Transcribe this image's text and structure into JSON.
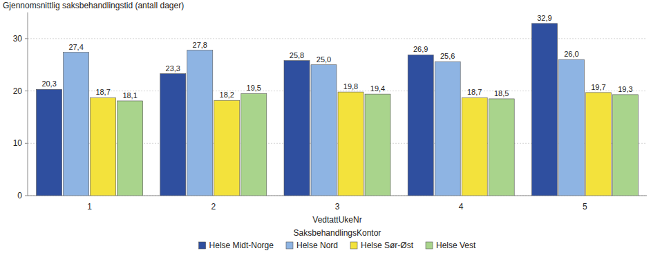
{
  "chart_data": {
    "type": "bar",
    "y_label": "Gjennomsnittlig saksbehandlingstid (antall dager)",
    "x_label": "VedtattUkeNr",
    "legend_title": "SaksbehandlingsKontor",
    "categories": [
      "1",
      "2",
      "3",
      "4",
      "5"
    ],
    "series": [
      {
        "name": "Helse Midt-Norge",
        "color": "#2f4f9f",
        "values": [
          20.3,
          23.3,
          25.8,
          26.9,
          32.9
        ],
        "value_labels": [
          "20,3",
          "23,3",
          "25,8",
          "26,9",
          "32,9"
        ]
      },
      {
        "name": "Helse Nord",
        "color": "#8eb4e3",
        "values": [
          27.4,
          27.8,
          25.0,
          25.6,
          26.0
        ],
        "value_labels": [
          "27,4",
          "27,8",
          "25,0",
          "25,6",
          "26,0"
        ]
      },
      {
        "name": "Helse Sør-Øst",
        "color": "#f3e23c",
        "values": [
          18.7,
          18.2,
          19.8,
          18.7,
          19.7
        ],
        "value_labels": [
          "18,7",
          "18,2",
          "19,8",
          "18,7",
          "19,7"
        ]
      },
      {
        "name": "Helse Vest",
        "color": "#a9d48c",
        "values": [
          18.1,
          19.5,
          19.4,
          18.5,
          19.3
        ],
        "value_labels": [
          "18,1",
          "19,5",
          "19,4",
          "18,5",
          "19,3"
        ]
      }
    ],
    "ylim": [
      0,
      35
    ],
    "yticks": [
      0,
      10,
      20,
      30
    ],
    "grid": true,
    "legend": "bottom",
    "data_labels": true
  }
}
